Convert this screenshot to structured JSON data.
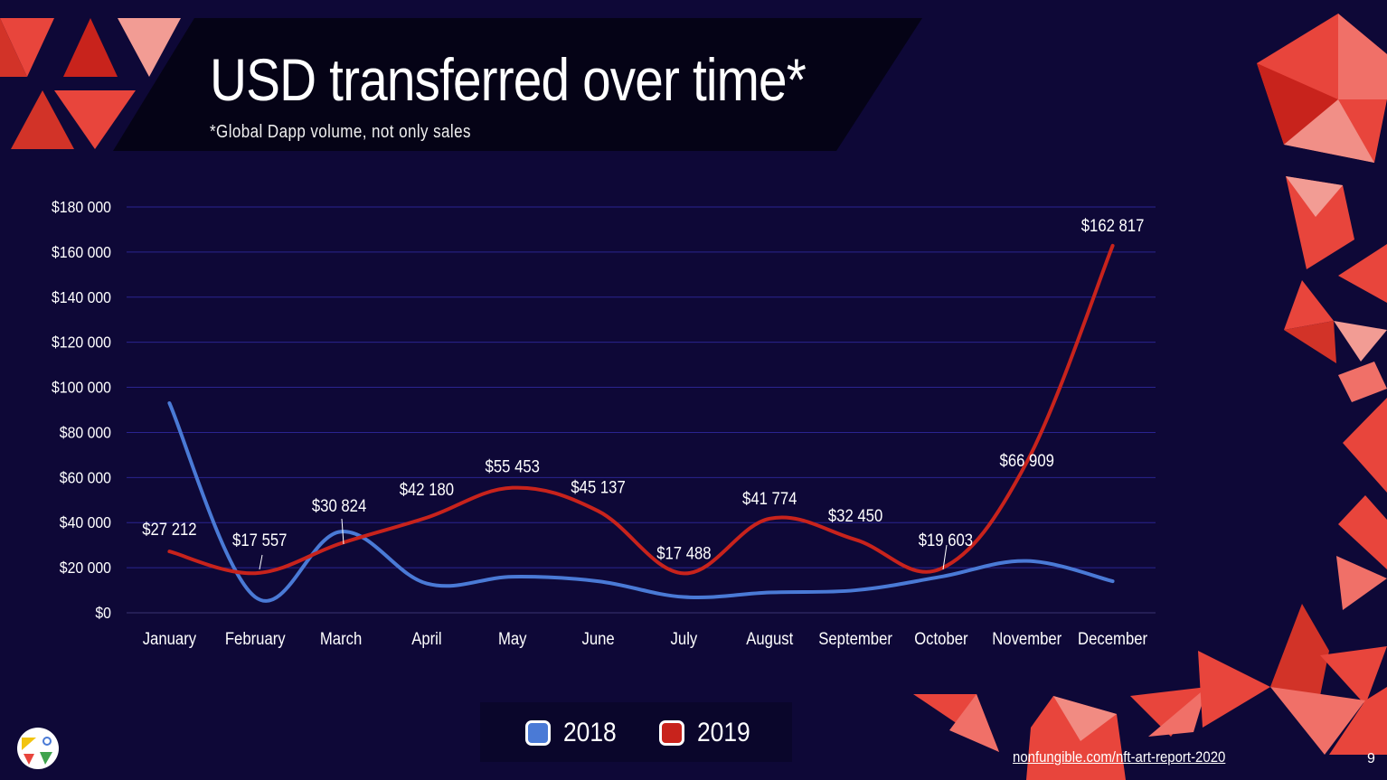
{
  "slide": {
    "title": "USD transferred over time*",
    "subtitle": "*Global Dapp volume, not only sales",
    "footer_link": "nonfungible.com/nft-art-report-2020",
    "page_number": "9",
    "logo_icon": "nonfungible-logo-icon"
  },
  "colors": {
    "background": "#0e0837",
    "series_2018": "#4a7ad6",
    "series_2019": "#c8231c",
    "accent_triangles": "#e8453c"
  },
  "chart_data": {
    "type": "line",
    "categories": [
      "January",
      "February",
      "March",
      "April",
      "May",
      "June",
      "July",
      "August",
      "September",
      "October",
      "November",
      "December"
    ],
    "y_ticks": [
      "$0",
      "$20 000",
      "$40 000",
      "$60 000",
      "$80 000",
      "$100 000",
      "$120 000",
      "$140 000",
      "$160 000",
      "$180 000"
    ],
    "ylim": [
      0,
      180000
    ],
    "grid": true,
    "legend_position": "bottom",
    "series": [
      {
        "name": "2018",
        "color": "#4a7ad6",
        "values": [
          93000,
          7000,
          36000,
          13000,
          16000,
          14000,
          7000,
          9000,
          10000,
          16000,
          23000,
          14000
        ]
      },
      {
        "name": "2019",
        "color": "#c8231c",
        "values": [
          27212,
          17557,
          30824,
          42180,
          55453,
          45137,
          17488,
          41774,
          32450,
          19603,
          66909,
          162817
        ],
        "data_labels": [
          "$27 212",
          "$17 557",
          "$30 824",
          "$42 180",
          "$55 453",
          "$45 137",
          "$17 488",
          "$41 774",
          "$32 450",
          "$19 603",
          "$66 909",
          "$162 817"
        ]
      }
    ]
  }
}
